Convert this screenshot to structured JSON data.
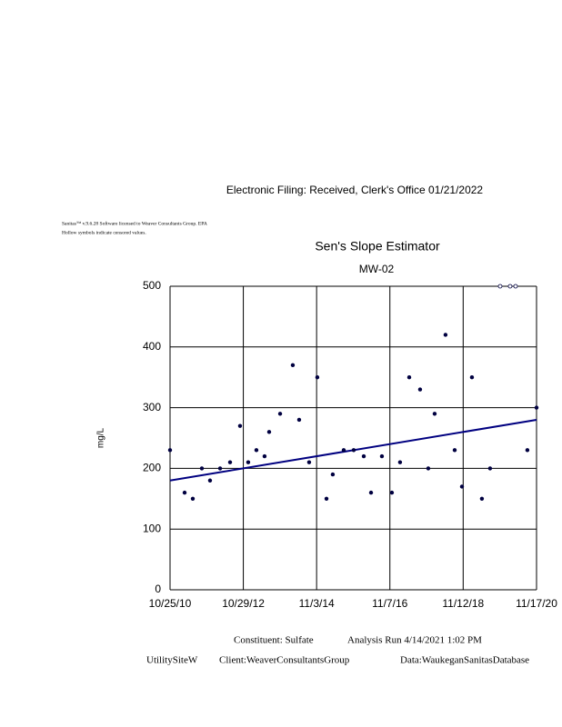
{
  "header": "Electronic     Filing:    Received,     Clerk's   Office   01/21/2022",
  "notes": [
    "Sanitas™  v.9.6.28  Software  licensed  to  Weaver  Consultants  Group.  EPA",
    "Hollow  symbols  indicate  censored  values."
  ],
  "footer": [
    "Constituent:    Sulfate",
    "Analysis   Run   4/14/2021     1:02   PM",
    "UtilitySiteW",
    "Client:WeaverConsultantsGroup",
    "Data:WaukeganSanitasDatabase"
  ],
  "chart_data": {
    "type": "scatter",
    "title": "Sen's Slope Estimator",
    "subtitle": "MW-02",
    "y_label": "mg/L",
    "x": [
      "2010-10-25",
      "2011-03-20",
      "2011-06-10",
      "2011-09-09",
      "2011-11-30",
      "2012-03-10",
      "2012-06-18",
      "2012-09-26",
      "2012-12-17",
      "2013-03-09",
      "2013-05-30",
      "2013-07-15",
      "2013-11-02",
      "2014-03-09",
      "2014-05-12",
      "2014-08-20",
      "2014-11-10",
      "2015-02-10",
      "2015-04-14",
      "2015-08-02",
      "2015-11-10",
      "2016-02-19",
      "2016-05-02",
      "2016-08-19",
      "2016-11-27",
      "2017-02-17",
      "2017-05-20",
      "2017-09-06",
      "2017-11-27",
      "2018-01-30",
      "2018-05-19",
      "2018-08-19",
      "2018-10-31",
      "2019-02-08",
      "2019-05-19",
      "2019-08-09",
      "2019-11-18",
      "2020-02-26",
      "2020-04-21",
      "2020-08-17",
      "2020-11-17"
    ],
    "values": [
      230,
      160,
      150,
      200,
      180,
      200,
      210,
      270,
      210,
      230,
      220,
      260,
      290,
      370,
      280,
      210,
      350,
      150,
      190,
      230,
      230,
      220,
      160,
      220,
      160,
      210,
      350,
      330,
      200,
      290,
      420,
      230,
      170,
      350,
      150,
      200,
      500,
      500,
      500,
      230,
      300
    ],
    "censored": [
      false,
      false,
      false,
      false,
      false,
      false,
      false,
      false,
      false,
      false,
      false,
      false,
      false,
      false,
      false,
      false,
      false,
      false,
      false,
      false,
      false,
      false,
      false,
      false,
      false,
      false,
      false,
      false,
      false,
      false,
      false,
      false,
      false,
      false,
      false,
      false,
      true,
      true,
      true,
      false,
      false
    ],
    "color": "#000040",
    "trend": {
      "x": [
        "2010-10-25",
        "2020-11-17"
      ],
      "values": [
        180,
        280
      ],
      "color": "#000080"
    },
    "xlim": [
      "2010-10-25",
      "2020-11-17"
    ],
    "xticks": [
      {
        "value": "2010-10-25",
        "label": "10/25/10"
      },
      {
        "value": "2012-10-29",
        "label": "10/29/12"
      },
      {
        "value": "2014-11-03",
        "label": "11/3/14"
      },
      {
        "value": "2016-11-07",
        "label": "11/7/16"
      },
      {
        "value": "2018-11-12",
        "label": "11/12/18"
      },
      {
        "value": "2020-11-17",
        "label": "11/17/20"
      }
    ],
    "ylim": [
      0,
      500
    ],
    "yticks": [
      0,
      100,
      200,
      300,
      400,
      500
    ],
    "grid": true
  }
}
